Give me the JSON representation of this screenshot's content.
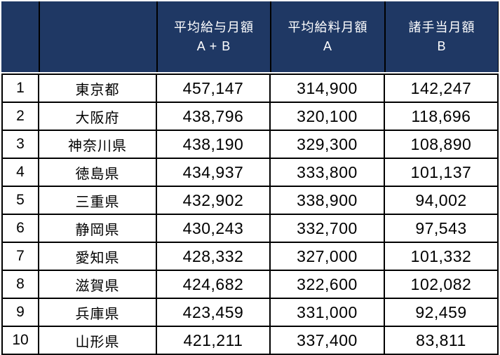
{
  "colors": {
    "header_bg": "#1F3864",
    "header_text": "#FFFFFF",
    "grid_border": "#000000",
    "cell_bg": "#FFFFFF",
    "cell_text": "#000000",
    "page_bg": "#FFFFFF"
  },
  "table": {
    "header": {
      "rank_label": "",
      "prefecture_label": "",
      "total": {
        "line1": "平均給与月額",
        "line2": "A + B"
      },
      "salary": {
        "line1": "平均給料月額",
        "line2": "A"
      },
      "allowance": {
        "line1": "諸手当月額",
        "line2": "B"
      }
    },
    "rows": [
      {
        "rank": "1",
        "prefecture": "東京都",
        "total": "457,147",
        "salary": "314,900",
        "allowance": "142,247"
      },
      {
        "rank": "2",
        "prefecture": "大阪府",
        "total": "438,796",
        "salary": "320,100",
        "allowance": "118,696"
      },
      {
        "rank": "3",
        "prefecture": "神奈川県",
        "total": "438,190",
        "salary": "329,300",
        "allowance": "108,890"
      },
      {
        "rank": "4",
        "prefecture": "徳島県",
        "total": "434,937",
        "salary": "333,800",
        "allowance": "101,137"
      },
      {
        "rank": "5",
        "prefecture": "三重県",
        "total": "432,902",
        "salary": "338,900",
        "allowance": "94,002"
      },
      {
        "rank": "6",
        "prefecture": "静岡県",
        "total": "430,243",
        "salary": "332,700",
        "allowance": "97,543"
      },
      {
        "rank": "7",
        "prefecture": "愛知県",
        "total": "428,332",
        "salary": "327,000",
        "allowance": "101,332"
      },
      {
        "rank": "8",
        "prefecture": "滋賀県",
        "total": "424,682",
        "salary": "322,600",
        "allowance": "102,082"
      },
      {
        "rank": "9",
        "prefecture": "兵庫県",
        "total": "423,459",
        "salary": "331,000",
        "allowance": "92,459"
      },
      {
        "rank": "10",
        "prefecture": "山形県",
        "total": "421,211",
        "salary": "337,400",
        "allowance": "83,811"
      }
    ]
  },
  "chart_data": {
    "type": "table",
    "columns": [
      "",
      "",
      "平均給与月額 A + B",
      "平均給料月額 A",
      "諸手当月額 B"
    ],
    "rows": [
      [
        1,
        "東京都",
        457147,
        314900,
        142247
      ],
      [
        2,
        "大阪府",
        438796,
        320100,
        118696
      ],
      [
        3,
        "神奈川県",
        438190,
        329300,
        108890
      ],
      [
        4,
        "徳島県",
        434937,
        333800,
        101137
      ],
      [
        5,
        "三重県",
        432902,
        338900,
        94002
      ],
      [
        6,
        "静岡県",
        430243,
        332700,
        97543
      ],
      [
        7,
        "愛知県",
        428332,
        327000,
        101332
      ],
      [
        8,
        "滋賀県",
        424682,
        322600,
        102082
      ],
      [
        9,
        "兵庫県",
        423459,
        331000,
        92459
      ],
      [
        10,
        "山形県",
        421211,
        337400,
        83811
      ]
    ],
    "title": "",
    "legend": "none",
    "grid": "on"
  }
}
